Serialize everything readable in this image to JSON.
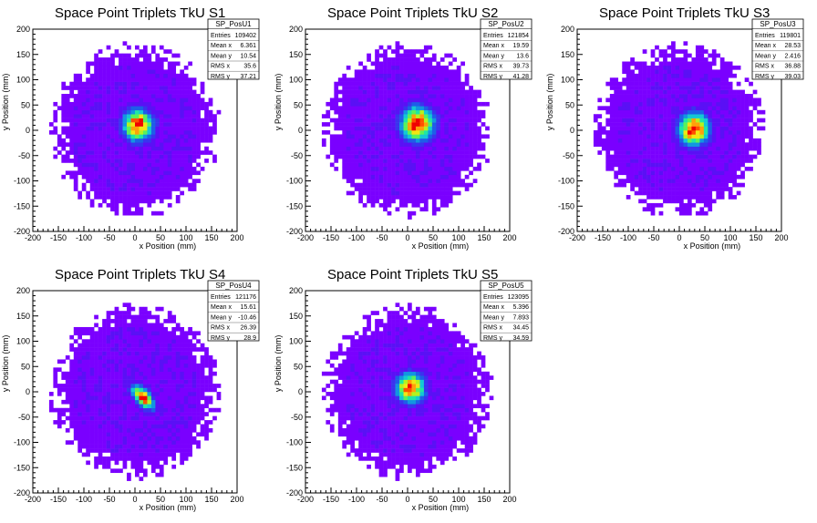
{
  "chart_data": [
    {
      "type": "heatmap",
      "title": "Space Point Triplets TkU S1",
      "xlabel": "x Position (mm)",
      "ylabel": "y Position (mm)",
      "xlim": [
        -200,
        200
      ],
      "ylim": [
        -200,
        200
      ],
      "xticks": [
        -200,
        -150,
        -100,
        -50,
        0,
        50,
        100,
        150,
        200
      ],
      "yticks": [
        -200,
        -150,
        -100,
        -50,
        0,
        50,
        100,
        150,
        200
      ],
      "stats": {
        "name": "SP_PosU1",
        "entries": "109402",
        "mean_x": "6.361",
        "mean_y": "10.54",
        "rms_x": "35.6",
        "rms_y": "37.21"
      },
      "hotspot": {
        "x": 6.361,
        "y": 10.54,
        "sigma_x": 35.6,
        "sigma_y": 37.21,
        "corr": 0
      },
      "extent": {
        "r_x": 165,
        "r_y": 170
      }
    },
    {
      "type": "heatmap",
      "title": "Space Point Triplets TkU S2",
      "xlabel": "x Position (mm)",
      "ylabel": "y Position (mm)",
      "xlim": [
        -200,
        200
      ],
      "ylim": [
        -200,
        200
      ],
      "xticks": [
        -200,
        -150,
        -100,
        -50,
        0,
        50,
        100,
        150,
        200
      ],
      "yticks": [
        -200,
        -150,
        -100,
        -50,
        0,
        50,
        100,
        150,
        200
      ],
      "stats": {
        "name": "SP_PosU2",
        "entries": "121854",
        "mean_x": "19.59",
        "mean_y": "13.6",
        "rms_x": "39.73",
        "rms_y": "41.28"
      },
      "hotspot": {
        "x": 19.59,
        "y": 13.6,
        "sigma_x": 39.73,
        "sigma_y": 41.28,
        "corr": 0
      },
      "extent": {
        "r_x": 165,
        "r_y": 170
      }
    },
    {
      "type": "heatmap",
      "title": "Space Point Triplets TkU S3",
      "xlabel": "x Position (mm)",
      "ylabel": "y Position (mm)",
      "xlim": [
        -200,
        200
      ],
      "ylim": [
        -200,
        200
      ],
      "xticks": [
        -200,
        -150,
        -100,
        -50,
        0,
        50,
        100,
        150,
        200
      ],
      "yticks": [
        -200,
        -150,
        -100,
        -50,
        0,
        50,
        100,
        150,
        200
      ],
      "stats": {
        "name": "SP_PosU3",
        "entries": "119801",
        "mean_x": "28.53",
        "mean_y": "2.416",
        "rms_x": "36.88",
        "rms_y": "39.03"
      },
      "hotspot": {
        "x": 28.53,
        "y": 2.416,
        "sigma_x": 36.88,
        "sigma_y": 39.03,
        "corr": 0
      },
      "extent": {
        "r_x": 165,
        "r_y": 170
      }
    },
    {
      "type": "heatmap",
      "title": "Space Point Triplets TkU S4",
      "xlabel": "x Position (mm)",
      "ylabel": "y Position (mm)",
      "xlim": [
        -200,
        200
      ],
      "ylim": [
        -200,
        200
      ],
      "xticks": [
        -200,
        -150,
        -100,
        -50,
        0,
        50,
        100,
        150,
        200
      ],
      "yticks": [
        -200,
        -150,
        -100,
        -50,
        0,
        50,
        100,
        150,
        200
      ],
      "stats": {
        "name": "SP_PosU4",
        "entries": "121176",
        "mean_x": "15.61",
        "mean_y": "-10.46",
        "rms_x": "26.39",
        "rms_y": "28.9"
      },
      "hotspot": {
        "x": 15.61,
        "y": -10.46,
        "sigma_x": 26.39,
        "sigma_y": 28.9,
        "corr": -0.6
      },
      "extent": {
        "r_x": 165,
        "r_y": 170
      }
    },
    {
      "type": "heatmap",
      "title": "Space Point Triplets TkU S5",
      "xlabel": "x Position (mm)",
      "ylabel": "y Position (mm)",
      "xlim": [
        -200,
        200
      ],
      "ylim": [
        -200,
        200
      ],
      "xticks": [
        -200,
        -150,
        -100,
        -50,
        0,
        50,
        100,
        150,
        200
      ],
      "yticks": [
        -200,
        -150,
        -100,
        -50,
        0,
        50,
        100,
        150,
        200
      ],
      "stats": {
        "name": "SP_PosU5",
        "entries": "123095",
        "mean_x": "5.396",
        "mean_y": "7.893",
        "rms_x": "34.45",
        "rms_y": "34.59"
      },
      "hotspot": {
        "x": 5.396,
        "y": 7.893,
        "sigma_x": 34.45,
        "sigma_y": 34.59,
        "corr": 0
      },
      "extent": {
        "r_x": 165,
        "r_y": 170
      }
    }
  ],
  "stats_labels": {
    "entries": "Entries",
    "mean_x": "Mean x",
    "mean_y": "Mean y",
    "rms_x": "RMS x",
    "rms_y": "RMS y"
  },
  "colors": {
    "background": "#ffffff",
    "frame": "#000000",
    "palette": [
      "#7a00ff",
      "#5a10f5",
      "#3a33ee",
      "#1e5ee8",
      "#1296e0",
      "#14c8d4",
      "#20e6a4",
      "#5af25a",
      "#b4f21e",
      "#f2e614",
      "#ffa00a",
      "#ff5000",
      "#f00000"
    ]
  }
}
